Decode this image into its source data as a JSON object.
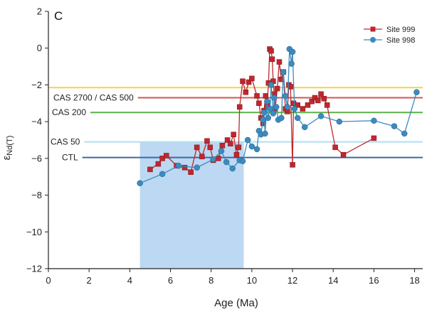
{
  "chart_data": {
    "type": "scatter",
    "panel_label": "C",
    "xlabel": "Age (Ma)",
    "ylabel": "εNd(T)",
    "ylabel_prefix": "ε",
    "ylabel_sub": "Nd(T)",
    "xlim": [
      0,
      18.4
    ],
    "ylim": [
      -12,
      2
    ],
    "x_ticks": [
      0,
      2,
      4,
      6,
      8,
      10,
      12,
      14,
      16,
      18
    ],
    "x_tick_labels": [
      "0",
      "2",
      "4",
      "6",
      "8",
      "10",
      "12",
      "14",
      "16",
      "18"
    ],
    "y_ticks": [
      2,
      0,
      -2,
      -4,
      -6,
      -8,
      -10,
      -12
    ],
    "y_tick_labels": [
      "2",
      "0",
      "−2",
      "−4",
      "−6",
      "−8",
      "−10",
      "−12"
    ],
    "grid": false,
    "legend_position": "top-right",
    "shaded_region": {
      "x": [
        4.5,
        9.6
      ],
      "y": [
        -12,
        -5.1
      ],
      "color": "#bcd8f2"
    },
    "reference_lines": [
      {
        "label": "",
        "y": -2.15,
        "color": "#f2d44a"
      },
      {
        "label": "CAS 2700 / CAS 500",
        "y": -2.7,
        "color": "#d9534f"
      },
      {
        "label": "CAS 200",
        "y": -3.5,
        "color": "#5cb04a"
      },
      {
        "label": "CAS 50",
        "y": -5.1,
        "color": "#aee0f2"
      },
      {
        "label": "CTL",
        "y": -5.95,
        "color": "#3d6aa0"
      }
    ],
    "series": [
      {
        "name": "Site 999",
        "color": "#c0272d",
        "marker": "square",
        "points": [
          [
            5.0,
            -6.6
          ],
          [
            5.4,
            -6.3
          ],
          [
            5.6,
            -6.0
          ],
          [
            5.8,
            -5.85
          ],
          [
            6.3,
            -6.4
          ],
          [
            6.7,
            -6.5
          ],
          [
            7.0,
            -6.75
          ],
          [
            7.3,
            -5.4
          ],
          [
            7.55,
            -5.9
          ],
          [
            7.8,
            -5.05
          ],
          [
            7.95,
            -5.4
          ],
          [
            8.1,
            -6.1
          ],
          [
            8.35,
            -6.0
          ],
          [
            8.55,
            -5.3
          ],
          [
            8.8,
            -5.0
          ],
          [
            8.95,
            -5.2
          ],
          [
            9.1,
            -4.7
          ],
          [
            9.25,
            -5.8
          ],
          [
            9.35,
            -5.4
          ],
          [
            9.4,
            -3.2
          ],
          [
            9.55,
            -1.8
          ],
          [
            9.7,
            -2.4
          ],
          [
            9.85,
            -1.85
          ],
          [
            10.0,
            -1.65
          ],
          [
            10.25,
            -2.6
          ],
          [
            10.35,
            -3.0
          ],
          [
            10.45,
            -3.8
          ],
          [
            10.55,
            -4.1
          ],
          [
            10.6,
            -3.4
          ],
          [
            10.68,
            -2.6
          ],
          [
            10.75,
            -3.1
          ],
          [
            10.82,
            -1.9
          ],
          [
            10.88,
            -0.05
          ],
          [
            10.95,
            -0.15
          ],
          [
            11.0,
            -0.6
          ],
          [
            11.05,
            -1.8
          ],
          [
            11.1,
            -2.5
          ],
          [
            11.15,
            -3.3
          ],
          [
            11.25,
            -2.2
          ],
          [
            11.35,
            -0.75
          ],
          [
            11.45,
            -1.7
          ],
          [
            11.55,
            -1.3
          ],
          [
            11.65,
            -3.3
          ],
          [
            11.75,
            -3.45
          ],
          [
            11.82,
            -2.0
          ],
          [
            11.9,
            -2.1
          ],
          [
            12.0,
            -6.35
          ],
          [
            12.05,
            -3.0
          ],
          [
            12.25,
            -3.1
          ],
          [
            12.5,
            -3.3
          ],
          [
            12.75,
            -3.1
          ],
          [
            12.95,
            -2.9
          ],
          [
            13.1,
            -2.7
          ],
          [
            13.25,
            -2.85
          ],
          [
            13.4,
            -2.5
          ],
          [
            13.55,
            -2.75
          ],
          [
            13.7,
            -3.1
          ],
          [
            14.1,
            -5.4
          ],
          [
            14.5,
            -5.8
          ],
          [
            16.0,
            -4.9
          ]
        ]
      },
      {
        "name": "Site 998",
        "color": "#3b8bbf",
        "marker": "circle",
        "points": [
          [
            4.5,
            -7.35
          ],
          [
            5.6,
            -6.85
          ],
          [
            6.4,
            -6.4
          ],
          [
            7.3,
            -6.5
          ],
          [
            8.1,
            -6.05
          ],
          [
            8.5,
            -5.6
          ],
          [
            8.75,
            -6.2
          ],
          [
            9.05,
            -6.55
          ],
          [
            9.4,
            -6.1
          ],
          [
            9.55,
            -6.15
          ],
          [
            9.8,
            -5.0
          ],
          [
            10.0,
            -5.35
          ],
          [
            10.25,
            -5.5
          ],
          [
            10.35,
            -4.5
          ],
          [
            10.45,
            -4.7
          ],
          [
            10.55,
            -3.9
          ],
          [
            10.6,
            -3.5
          ],
          [
            10.65,
            -4.65
          ],
          [
            10.75,
            -2.9
          ],
          [
            10.8,
            -3.8
          ],
          [
            10.9,
            -3.3
          ],
          [
            10.95,
            -2.0
          ],
          [
            11.05,
            -3.55
          ],
          [
            11.1,
            -2.7
          ],
          [
            11.2,
            -3.2
          ],
          [
            11.3,
            -3.9
          ],
          [
            11.45,
            -3.8
          ],
          [
            11.55,
            -1.3
          ],
          [
            11.65,
            -2.6
          ],
          [
            11.75,
            -3.2
          ],
          [
            11.85,
            -0.05
          ],
          [
            11.95,
            -0.85
          ],
          [
            12.0,
            -0.2
          ],
          [
            12.1,
            -3.3
          ],
          [
            12.25,
            -3.8
          ],
          [
            12.6,
            -4.3
          ],
          [
            13.4,
            -3.7
          ],
          [
            14.3,
            -4.0
          ],
          [
            16.0,
            -3.95
          ],
          [
            17.0,
            -4.25
          ],
          [
            17.5,
            -4.65
          ],
          [
            18.1,
            -2.4
          ]
        ]
      }
    ]
  }
}
